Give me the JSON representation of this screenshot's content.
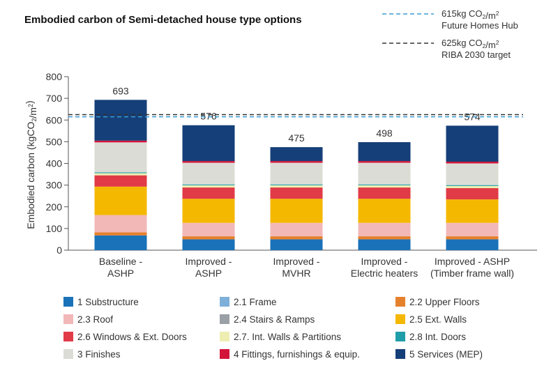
{
  "chart_data": {
    "type": "bar",
    "stacked": true,
    "title": "Embodied carbon of Semi-detached house type options",
    "ylabel": "Embodied carbon (kgCO2/m2)",
    "ylim": [
      0,
      800
    ],
    "yticks": [
      0,
      100,
      200,
      300,
      400,
      500,
      600,
      700,
      800
    ],
    "categories": [
      [
        "Baseline -",
        "ASHP"
      ],
      [
        "Improved -",
        "ASHP"
      ],
      [
        "Improved -",
        "MVHR"
      ],
      [
        "Improved -",
        "Electric heaters"
      ],
      [
        "Improved - ASHP",
        "(Timber frame wall)"
      ]
    ],
    "totals": [
      "693",
      "576",
      "475",
      "498",
      "574"
    ],
    "series": [
      {
        "name": "1 Substructure",
        "color": "#1a72b8",
        "values": [
          68,
          50,
          50,
          50,
          50
        ]
      },
      {
        "name": "2.1 Frame",
        "color": "#7fb0da",
        "values": [
          0,
          0,
          0,
          0,
          0
        ]
      },
      {
        "name": "2.2 Upper Floors",
        "color": "#e5812d",
        "values": [
          14,
          14,
          14,
          14,
          14
        ]
      },
      {
        "name": "2.3 Roof",
        "color": "#f2b8b8",
        "values": [
          80,
          62,
          62,
          62,
          62
        ]
      },
      {
        "name": "2.4 Stairs & Ramps",
        "color": "#9aa0a6",
        "values": [
          0,
          0,
          0,
          0,
          0
        ]
      },
      {
        "name": "2.5 Ext. Walls",
        "color": "#f5b800",
        "values": [
          131,
          111,
          111,
          111,
          108
        ]
      },
      {
        "name": "2.6 Windows & Ext. Doors",
        "color": "#e03b46",
        "values": [
          52,
          52,
          52,
          52,
          52
        ]
      },
      {
        "name": "2.7. Int. Walls & Partitions",
        "color": "#eeeeb3",
        "values": [
          10,
          10,
          10,
          10,
          10
        ]
      },
      {
        "name": "2.8 Int. Doors",
        "color": "#1e9ea8",
        "values": [
          4,
          4,
          4,
          4,
          4
        ]
      },
      {
        "name": "3 Finishes",
        "color": "#dcdcd6",
        "values": [
          138,
          100,
          100,
          100,
          100
        ]
      },
      {
        "name": "4 Fittings, furnishings & equip.",
        "color": "#d2143a",
        "values": [
          8,
          8,
          8,
          8,
          8
        ]
      },
      {
        "name": "5 Services (MEP)",
        "color": "#153f78",
        "values": [
          188,
          165,
          64,
          87,
          166
        ]
      }
    ],
    "reference_lines": [
      {
        "value": 615,
        "color": "#3a9bd5",
        "label1": "615kg CO2/m2",
        "label2": "Future Homes Hub"
      },
      {
        "value": 625,
        "color": "#333333",
        "label1": "625kg CO2/m2",
        "label2": "RIBA 2030 target"
      }
    ],
    "legend_position": "bottom",
    "grid": false
  }
}
